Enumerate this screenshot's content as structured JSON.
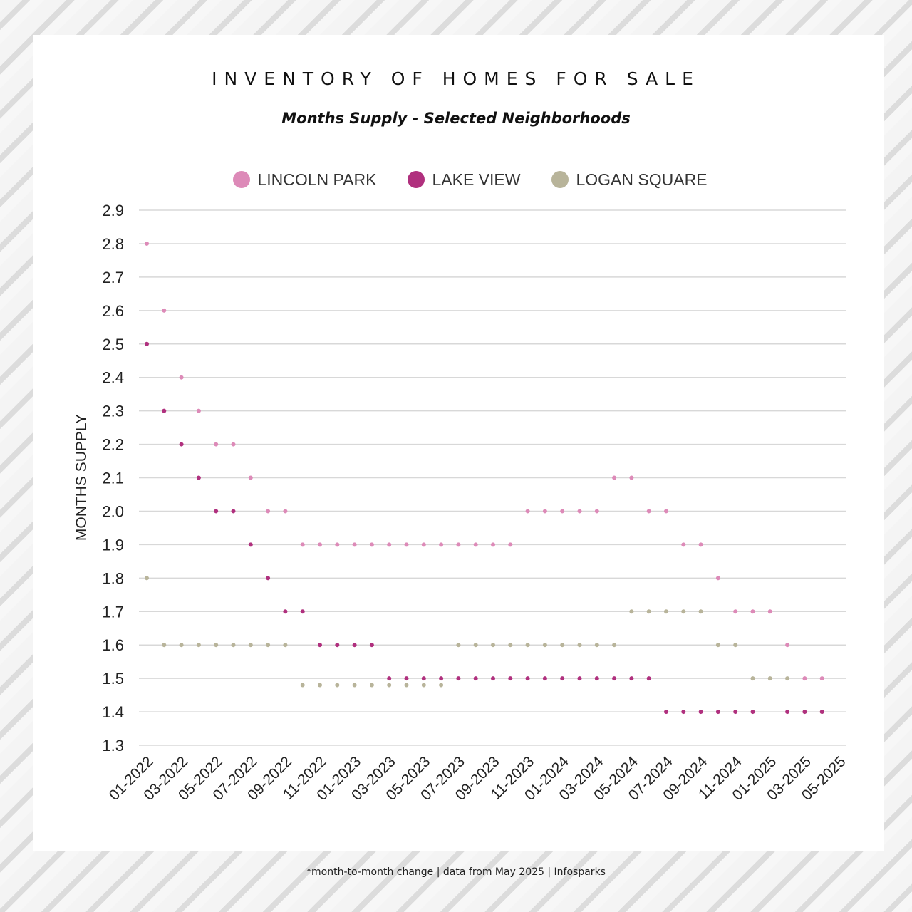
{
  "footer": "*month-to-month change | data from May 2025 | Infosparks",
  "chart_data": {
    "type": "scatter",
    "title": "INVENTORY OF HOMES FOR SALE",
    "subtitle": "Months Supply - Selected Neighborhoods",
    "ylabel": "MONTHS SUPPLY",
    "xlabel": "",
    "ylim": [
      1.3,
      2.9
    ],
    "yticks": [
      "2.9",
      "2.8",
      "2.7",
      "2.6",
      "2.5",
      "2.4",
      "2.3",
      "2.2",
      "2.1",
      "2.0",
      "1.9",
      "1.8",
      "1.7",
      "1.6",
      "1.5",
      "1.4",
      "1.3"
    ],
    "grid": true,
    "legend_position": "top",
    "x": [
      "01-2022",
      "02-2022",
      "03-2022",
      "04-2022",
      "05-2022",
      "06-2022",
      "07-2022",
      "08-2022",
      "09-2022",
      "10-2022",
      "11-2022",
      "12-2022",
      "01-2023",
      "02-2023",
      "03-2023",
      "04-2023",
      "05-2023",
      "06-2023",
      "07-2023",
      "08-2023",
      "09-2023",
      "10-2023",
      "11-2023",
      "12-2023",
      "01-2024",
      "02-2024",
      "03-2024",
      "04-2024",
      "05-2024",
      "06-2024",
      "07-2024",
      "08-2024",
      "09-2024",
      "10-2024",
      "11-2024",
      "12-2024",
      "01-2025",
      "02-2025",
      "03-2025",
      "04-2025",
      "05-2025"
    ],
    "xtick_labels": [
      "01-2022",
      "03-2022",
      "05-2022",
      "07-2022",
      "09-2022",
      "11-2022",
      "01-2023",
      "03-2023",
      "05-2023",
      "07-2023",
      "09-2023",
      "11-2023",
      "01-2024",
      "03-2024",
      "05-2024",
      "07-2024",
      "09-2024",
      "11-2024",
      "01-2025",
      "03-2025",
      "05-2025"
    ],
    "series": [
      {
        "name": "LINCOLN PARK",
        "color": "#dd8ab8",
        "values": [
          2.8,
          2.6,
          2.4,
          2.3,
          2.2,
          2.2,
          2.1,
          2.0,
          2.0,
          1.9,
          1.9,
          1.9,
          1.9,
          1.9,
          1.9,
          1.9,
          1.9,
          1.9,
          1.9,
          1.9,
          1.9,
          1.9,
          2.0,
          2.0,
          2.0,
          2.0,
          2.0,
          2.1,
          2.1,
          2.0,
          2.0,
          1.9,
          1.9,
          1.8,
          1.7,
          1.7,
          1.7,
          1.6,
          1.5,
          1.5,
          null
        ]
      },
      {
        "name": "LAKE VIEW",
        "color": "#b0307e",
        "values": [
          2.5,
          2.3,
          2.2,
          2.1,
          2.0,
          2.0,
          1.9,
          1.8,
          1.7,
          1.7,
          1.6,
          1.6,
          1.6,
          1.6,
          1.5,
          1.5,
          1.5,
          1.5,
          1.5,
          1.5,
          1.5,
          1.5,
          1.5,
          1.5,
          1.5,
          1.5,
          1.5,
          1.5,
          1.5,
          1.5,
          1.4,
          1.4,
          1.4,
          1.4,
          1.4,
          1.4,
          null,
          1.4,
          1.4,
          1.4,
          null
        ]
      },
      {
        "name": "LOGAN SQUARE",
        "color": "#b8b49a",
        "values": [
          1.8,
          1.6,
          1.6,
          1.6,
          1.6,
          1.6,
          1.6,
          1.6,
          1.6,
          1.48,
          1.48,
          1.48,
          1.48,
          1.48,
          1.48,
          1.48,
          1.48,
          1.48,
          1.6,
          1.6,
          1.6,
          1.6,
          1.6,
          1.6,
          1.6,
          1.6,
          1.6,
          1.6,
          1.7,
          1.7,
          1.7,
          1.7,
          1.7,
          1.6,
          1.6,
          1.5,
          1.5,
          1.5,
          1.4,
          1.4,
          null
        ]
      }
    ]
  }
}
